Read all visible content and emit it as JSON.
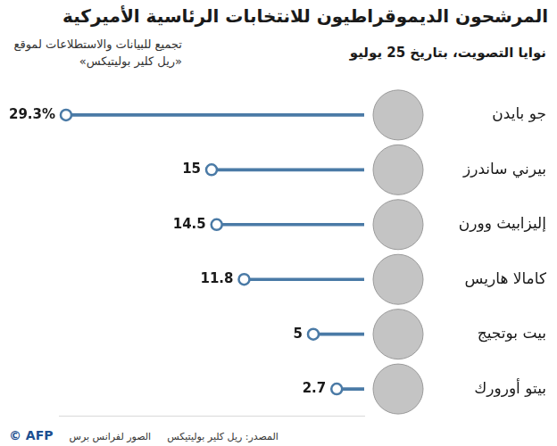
{
  "chart_data": {
    "type": "bar",
    "orientation": "horizontal",
    "title": "المرشحون الديموقراطيون للانتخابات الرئاسية الأميركية",
    "subtitle": "نوايا التصويت، بتاريخ 25 يوليو",
    "note": "تجميع للبيانات والاستطلاعات لموقع «ريل كلير بوليتيكس»",
    "source": "المصدر: ريل كلير بوليتيكس",
    "credit": "الصور لفرانس برس",
    "logo": "© AFP",
    "categories": [
      "جو بايدن",
      "بيرني ساندرز",
      "إليزابيث وورن",
      "كامالا هاريس",
      "بيت بوتجيج",
      "بيتو أورورك"
    ],
    "values": [
      29.3,
      15,
      14.5,
      11.8,
      5,
      2.7
    ],
    "value_labels": [
      "29.3%",
      "15",
      "14.5",
      "11.8",
      "5",
      "2.7"
    ],
    "color": "#4a7aa6",
    "xlim": [
      0,
      30
    ],
    "data_labels": true,
    "tick_labels": "y",
    "grid": false
  }
}
